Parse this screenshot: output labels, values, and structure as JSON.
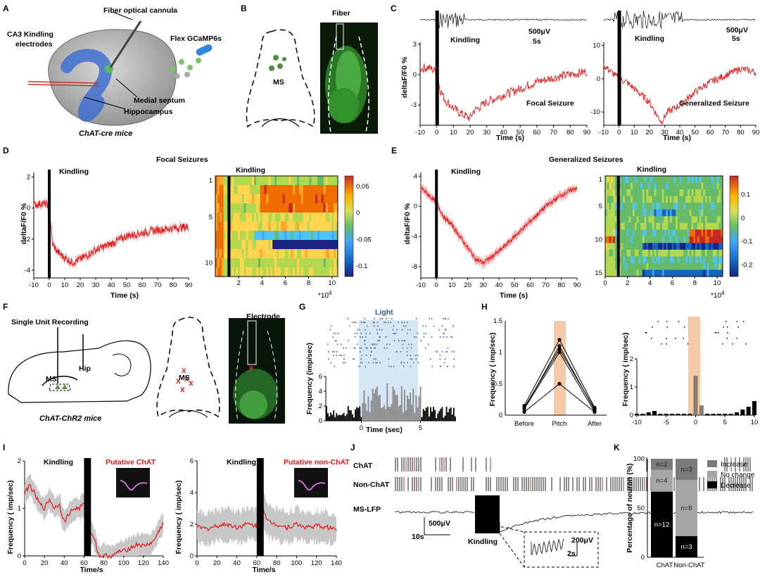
{
  "panels": {
    "a": {
      "label": "A",
      "fiber": "Fiber optical cannula",
      "electrodes1": "CA3 Kindling",
      "electrodes2": "electrodes",
      "flex": "Flex GCaMP6s",
      "septum": "Medial septum",
      "hippo": "Hippocampus",
      "mice": "ChAT-cre mice"
    },
    "b": {
      "label": "B",
      "ms": "MS",
      "fiber": "Fiber"
    },
    "c": {
      "label": "C",
      "focal": "Focal Seizure",
      "generalized": "Generalized Seizure",
      "kindling": "Kindling",
      "scale_v": "500μV",
      "scale_t": "5s",
      "ylabel": "deltaF/F0  %",
      "xlabel": "Time (s)"
    },
    "d": {
      "label": "D",
      "title": "Focal Seizures",
      "kindling": "Kindling",
      "ylabel": "deltaF/F0  %",
      "xlabel": "Time (s)",
      "exp": "*10",
      "exp_sup": "4"
    },
    "e": {
      "label": "E",
      "title": "Generalized Seizures",
      "kindling": "Kindling",
      "ylabel": "deltaF/F0  %",
      "xlabel": "Time (s)",
      "exp": "*10",
      "exp_sup": "4"
    },
    "f": {
      "label": "F",
      "sur": "Single Unit Recording",
      "hip": "Hip",
      "ms": "MS",
      "mice": "ChAT-ChR2 mice",
      "electrode": "Electrode"
    },
    "g": {
      "label": "G",
      "light": "Light",
      "ylabel": "Frequency (imp/sec)",
      "xlabel": "Time (sec)"
    },
    "h": {
      "label": "H",
      "ylabel": "Frequency ( imp/sec)"
    },
    "i": {
      "label": "I",
      "kindling": "Kindling",
      "pchat": "Putative ChAT",
      "pnonchat": "Putative non-ChAT",
      "ylabel": "Frequency ( imp/sec)",
      "xlabel": "Time/s"
    },
    "j": {
      "label": "J",
      "chat": "ChAT",
      "nonchat": "Non-ChAT",
      "mslfp": "MS-LFP",
      "scale_v": "500μV",
      "scale_t": "10s",
      "kindling": "Kindling",
      "inset_v": "200μV",
      "inset_t": "2s"
    },
    "k": {
      "label": "K",
      "ylabel": "Percentage of neuron (%)",
      "legend": [
        "Increase",
        "No change",
        "Decrease"
      ]
    }
  },
  "chart_data": [
    {
      "id": "C-focal",
      "type": "line",
      "xlabel": "Time (s)",
      "ylabel": "deltaF/F0  %",
      "xlim": [
        -10,
        90
      ],
      "ylim": [
        -5,
        3.2
      ],
      "xticks": [
        -10,
        0,
        10,
        20,
        30,
        40,
        50,
        60,
        70,
        80,
        90
      ],
      "yticks": [
        3,
        0,
        -3
      ],
      "x": [
        -10,
        -5,
        0,
        2,
        5,
        10,
        15,
        20,
        22,
        25,
        30,
        40,
        50,
        60,
        70,
        80,
        90
      ],
      "y": [
        0.6,
        0.7,
        0.3,
        -1.5,
        -2.5,
        -3.3,
        -3.9,
        -4.3,
        -3.6,
        -3.3,
        -2.7,
        -2.0,
        -1.4,
        -0.7,
        -0.3,
        0.0,
        0.3
      ]
    },
    {
      "id": "C-generalized",
      "type": "line",
      "xlabel": "Time (s)",
      "ylabel": "deltaF/F0  %",
      "xlim": [
        -10,
        90
      ],
      "ylim": [
        -14,
        11
      ],
      "xticks": [
        -10,
        0,
        10,
        20,
        30,
        40,
        50,
        60,
        70,
        80,
        90
      ],
      "yticks": [
        10,
        0,
        -10
      ],
      "x": [
        -10,
        -5,
        0,
        5,
        10,
        15,
        20,
        25,
        28,
        32,
        40,
        50,
        60,
        70,
        80,
        90
      ],
      "y": [
        4,
        2,
        0,
        -1,
        -3,
        -5,
        -7,
        -11,
        -13,
        -10,
        -8,
        -4,
        -1,
        1,
        3,
        2
      ]
    },
    {
      "id": "D-line",
      "type": "line",
      "xlabel": "Time (s)",
      "xlim": [
        -10,
        90
      ],
      "ylim": [
        -4.5,
        2.3
      ],
      "xticks": [
        -10,
        0,
        10,
        20,
        30,
        40,
        50,
        60,
        70,
        80,
        90
      ],
      "yticks": [
        2,
        0,
        -2,
        -4
      ],
      "x": [
        -10,
        -5,
        0,
        2,
        5,
        10,
        15,
        20,
        25,
        30,
        40,
        50,
        60,
        70,
        80,
        90
      ],
      "y": [
        0.2,
        0.3,
        0.2,
        -2.3,
        -2.8,
        -3.2,
        -3.5,
        -3.3,
        -3.0,
        -2.7,
        -2.3,
        -1.8,
        -1.6,
        -1.4,
        -1.3,
        -1.2
      ]
    },
    {
      "id": "D-heatmap",
      "type": "heatmap",
      "rows": 11,
      "xticks": [
        2,
        4,
        6,
        8,
        10
      ],
      "yticks": [
        1,
        5,
        10
      ],
      "colorbar": {
        "min": -0.12,
        "max": 0.07,
        "ticks": [
          0.05,
          0,
          -0.05,
          -0.1
        ]
      }
    },
    {
      "id": "E-line",
      "type": "line",
      "xlabel": "Time (s)",
      "xlim": [
        -10,
        90
      ],
      "ylim": [
        -9.5,
        4.5
      ],
      "xticks": [
        -10,
        0,
        10,
        20,
        30,
        40,
        50,
        60,
        70,
        80,
        90
      ],
      "yticks": [
        4,
        0,
        -4,
        -8
      ],
      "x": [
        -10,
        -5,
        0,
        5,
        10,
        15,
        20,
        25,
        30,
        40,
        50,
        60,
        70,
        80,
        90
      ],
      "y": [
        2.5,
        1.5,
        0.5,
        -1.5,
        -2.5,
        -4.0,
        -5.5,
        -7.0,
        -7.5,
        -6.0,
        -4.0,
        -2.0,
        0.0,
        1.5,
        2.5
      ]
    },
    {
      "id": "E-heatmap",
      "type": "heatmap",
      "rows": 15,
      "xticks": [
        0,
        2,
        4,
        6,
        8,
        10
      ],
      "yticks": [
        1,
        5,
        10,
        15
      ],
      "colorbar": {
        "min": -0.25,
        "max": 0.18,
        "ticks": [
          0.1,
          0,
          -0.1,
          -0.2
        ]
      }
    },
    {
      "id": "G-psth",
      "type": "bar",
      "xlabel": "Time (sec)",
      "ylabel": "Frequency (imp/sec)",
      "xlim": [
        -3,
        8
      ],
      "ylim": [
        0,
        6
      ],
      "xticks": [
        0,
        5
      ],
      "yticks": [
        0,
        2,
        4,
        6
      ],
      "light_window": [
        0,
        5
      ],
      "pre_mean": 1.2,
      "light_mean": 3.0,
      "post_mean": 1.5
    },
    {
      "id": "H-line",
      "type": "line",
      "ylabel": "Frequency ( imp/sec)",
      "categories": [
        "Before",
        "Pitch",
        "After"
      ],
      "ylim": [
        0,
        1.5
      ],
      "yticks": [
        0,
        0.5,
        1.0,
        1.5
      ],
      "series": [
        {
          "values": [
            0.15,
            1.2,
            0.12
          ]
        },
        {
          "values": [
            0.1,
            1.1,
            0.08
          ]
        },
        {
          "values": [
            0.12,
            1.05,
            0.1
          ]
        },
        {
          "values": [
            0.1,
            1.0,
            0.05
          ]
        },
        {
          "values": [
            0.05,
            0.5,
            0.05
          ]
        }
      ]
    },
    {
      "id": "H-psth",
      "type": "bar",
      "xlim": [
        -10,
        10
      ],
      "ylim": [
        0,
        2
      ],
      "xticks": [
        -10,
        -5,
        0,
        5,
        10
      ],
      "yticks": [
        0,
        1,
        2
      ],
      "x": [
        -10,
        -9,
        -8,
        -7,
        -6,
        -5,
        -4,
        -3,
        -2,
        -1,
        0,
        1,
        2,
        3,
        4,
        5,
        6,
        7,
        8,
        9,
        10
      ],
      "values": [
        0.05,
        0.05,
        0.1,
        0.15,
        0.05,
        0.05,
        0.05,
        0.05,
        0.05,
        0.05,
        1.4,
        0.35,
        0.05,
        0.05,
        0.05,
        0.05,
        0.05,
        0.1,
        0.2,
        0.3,
        0.5
      ]
    },
    {
      "id": "I-chat",
      "type": "line",
      "xlabel": "Time/s",
      "ylabel": "Frequency ( imp/sec)",
      "xlim": [
        0,
        140
      ],
      "ylim": [
        0,
        2
      ],
      "xticks": [
        0,
        20,
        40,
        60,
        80,
        100,
        120,
        140
      ],
      "yticks": [
        0,
        1,
        2
      ],
      "x": [
        0,
        5,
        10,
        15,
        20,
        25,
        30,
        35,
        40,
        45,
        50,
        55,
        60,
        65,
        70,
        75,
        80,
        85,
        90,
        95,
        100,
        105,
        110,
        115,
        120,
        125,
        130,
        135,
        140
      ],
      "y": [
        1.3,
        1.5,
        1.3,
        1.1,
        1.0,
        1.2,
        1.0,
        1.1,
        0.7,
        0.9,
        1.0,
        1.0,
        1.1,
        0.6,
        0.4,
        0.0,
        0.0,
        0.0,
        0.0,
        0.1,
        0.1,
        0.15,
        0.2,
        0.25,
        0.2,
        0.25,
        0.3,
        0.5,
        0.7
      ]
    },
    {
      "id": "I-nonchat",
      "type": "line",
      "xlabel": "Time/s",
      "ylabel": "Frequency ( imp/sec)",
      "xlim": [
        0,
        140
      ],
      "ylim": [
        0,
        6
      ],
      "xticks": [
        0,
        20,
        40,
        60,
        80,
        100,
        120,
        140
      ],
      "yticks": [
        0,
        2,
        4,
        6
      ],
      "x": [
        0,
        10,
        20,
        30,
        40,
        50,
        60,
        65,
        70,
        80,
        90,
        100,
        110,
        120,
        130,
        140
      ],
      "y": [
        1.8,
        1.7,
        1.9,
        2.0,
        1.8,
        2.0,
        1.9,
        3.5,
        2.2,
        2.0,
        1.8,
        2.0,
        1.8,
        1.9,
        1.8,
        1.7
      ]
    },
    {
      "id": "K-stacked",
      "type": "bar",
      "ylabel": "Percentage of neuron (%)",
      "categories": [
        "ChAT",
        "Non-ChAT"
      ],
      "ylim": [
        0,
        100
      ],
      "yticks": [
        0,
        50,
        100
      ],
      "series": [
        {
          "name": "Decrease",
          "values": [
            12,
            3
          ],
          "color": "#000000"
        },
        {
          "name": "No change",
          "values": [
            4,
            8
          ],
          "color": "#a6a6a6"
        },
        {
          "name": "Increase",
          "values": [
            2,
            3
          ],
          "color": "#7a7a7a"
        }
      ],
      "labels": {
        "chat": [
          "n=12",
          "n=4",
          "n=2"
        ],
        "nonchat": [
          "n=3",
          "n=8",
          "n=3"
        ]
      }
    }
  ],
  "colors": {
    "red": "#e41a1c",
    "shade": "#f39a9a",
    "grey": "#c8c8c8",
    "raster": "#5b7dab",
    "orange": "#f4c9a8",
    "light": "#d7e6f5"
  }
}
